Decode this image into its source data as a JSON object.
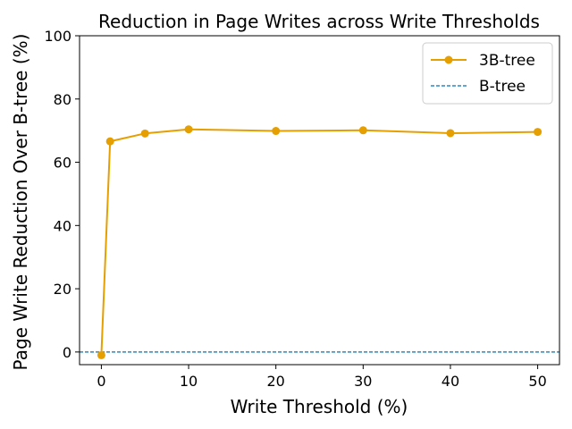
{
  "chart_data": {
    "type": "line",
    "title": "Reduction in Page Writes across Write Thresholds",
    "xlabel": "Write Threshold (%)",
    "ylabel": "Page Write Reduction Over B-tree (%)",
    "xlim": [
      -2.5,
      52.5
    ],
    "ylim": [
      -4,
      100
    ],
    "xticks": [
      0,
      10,
      20,
      30,
      40,
      50
    ],
    "yticks": [
      0,
      20,
      40,
      60,
      80,
      100
    ],
    "grid": false,
    "legend_position": "top-right",
    "series": [
      {
        "name": "3B-tree",
        "style": "solid line with circle markers",
        "color": "#E69F00",
        "x": [
          0,
          1,
          5,
          10,
          20,
          30,
          40,
          50
        ],
        "y": [
          -1,
          66.6,
          69.1,
          70.4,
          69.9,
          70.1,
          69.2,
          69.6
        ]
      },
      {
        "name": "B-tree",
        "style": "dashed horizontal reference line",
        "color": "#0072B2",
        "y_constant": 0
      }
    ]
  }
}
